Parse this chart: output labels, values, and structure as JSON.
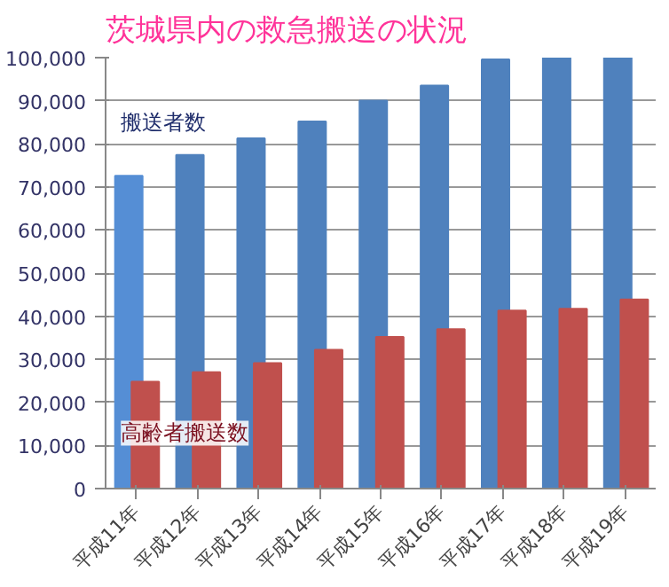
{
  "chart_data": {
    "type": "bar",
    "title": "茨城県内の救急搬送の状況",
    "categories": [
      "平成11年",
      "平成12年",
      "平成13年",
      "平成14年",
      "平成15年",
      "平成16年",
      "平成17年",
      "平成18年",
      "平成19年"
    ],
    "series": [
      {
        "name": "搬送者数",
        "color": "#4f81bd",
        "colors": [
          "#558ed5",
          null,
          null,
          null,
          null,
          null,
          null,
          null,
          null
        ],
        "values": [
          72600,
          77400,
          81300,
          85200,
          90000,
          93500,
          99600,
          100000,
          100000
        ]
      },
      {
        "name": "高齢者搬送数",
        "color": "#c0504d",
        "values": [
          24800,
          27000,
          29100,
          32200,
          35200,
          37000,
          41300,
          41700,
          43900
        ]
      }
    ],
    "ylim": [
      0,
      100000
    ],
    "yticks": [
      {
        "value": 0,
        "label": "0"
      },
      {
        "value": 10000,
        "label": "10,000"
      },
      {
        "value": 20000,
        "label": "20,000"
      },
      {
        "value": 30000,
        "label": "30,000"
      },
      {
        "value": 40000,
        "label": "40,000"
      },
      {
        "value": 50000,
        "label": "50,000"
      },
      {
        "value": 60000,
        "label": "60,000"
      },
      {
        "value": 70000,
        "label": "70,000"
      },
      {
        "value": 80000,
        "label": "80,000"
      },
      {
        "value": 90000,
        "label": "90,000"
      },
      {
        "value": 100000,
        "label": "100,000"
      }
    ],
    "grid": "y",
    "legend": false
  }
}
